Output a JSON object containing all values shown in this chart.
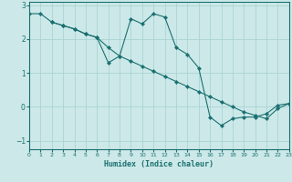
{
  "xlabel": "Humidex (Indice chaleur)",
  "bg_color": "#cce8e8",
  "line_color": "#1a7070",
  "grid_color": "#aad4d4",
  "line1_x": [
    0,
    1,
    2,
    3,
    4,
    5,
    6,
    7,
    8,
    9,
    10,
    11,
    12,
    13,
    14,
    15,
    16,
    17,
    18,
    19,
    20,
    21,
    22,
    23
  ],
  "line1_y": [
    2.75,
    2.75,
    2.5,
    2.4,
    2.3,
    2.15,
    2.05,
    1.75,
    1.5,
    1.35,
    1.2,
    1.05,
    0.9,
    0.75,
    0.6,
    0.45,
    0.3,
    0.15,
    0.0,
    -0.15,
    -0.25,
    -0.35,
    -0.05,
    0.1
  ],
  "line2_x": [
    2,
    3,
    4,
    5,
    6,
    7,
    8,
    9,
    10,
    11,
    12,
    13,
    14,
    15,
    16,
    17,
    18,
    19,
    20,
    21,
    22,
    23
  ],
  "line2_y": [
    2.5,
    2.4,
    2.3,
    2.15,
    2.05,
    1.3,
    1.5,
    2.6,
    2.45,
    2.75,
    2.65,
    1.75,
    1.55,
    1.15,
    -0.3,
    -0.55,
    -0.35,
    -0.3,
    -0.3,
    -0.2,
    0.05,
    0.1
  ],
  "xlim": [
    0,
    23
  ],
  "ylim": [
    -1.25,
    3.1
  ],
  "yticks": [
    -1,
    0,
    1,
    2,
    3
  ],
  "xticks": [
    0,
    1,
    2,
    3,
    4,
    5,
    6,
    7,
    8,
    9,
    10,
    11,
    12,
    13,
    14,
    15,
    16,
    17,
    18,
    19,
    20,
    21,
    22,
    23
  ],
  "marker": "D",
  "markersize": 2.2,
  "linewidth": 0.8
}
